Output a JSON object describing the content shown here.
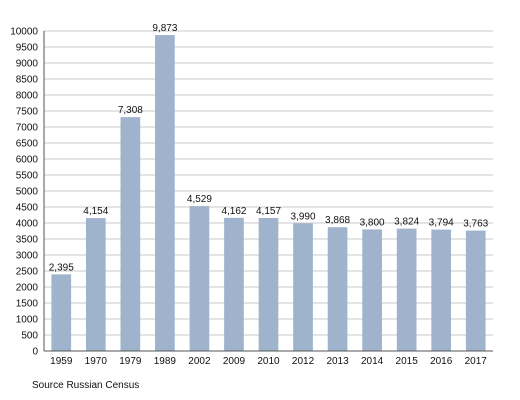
{
  "chart_data": {
    "type": "bar",
    "categories": [
      "1959",
      "1970",
      "1979",
      "1989",
      "2002",
      "2009",
      "2010",
      "2012",
      "2013",
      "2014",
      "2015",
      "2016",
      "2017"
    ],
    "values": [
      2395,
      4154,
      7308,
      9873,
      4529,
      4162,
      4157,
      3990,
      3868,
      3800,
      3824,
      3794,
      3763
    ],
    "value_labels": [
      "2,395",
      "4,154",
      "7,308",
      "9,873",
      "4,529",
      "4,162",
      "4,157",
      "3,990",
      "3,868",
      "3,800",
      "3,824",
      "3,794",
      "3,763"
    ],
    "ylim": [
      0,
      10000
    ],
    "y_ticks": [
      0,
      500,
      1000,
      1500,
      2000,
      2500,
      3000,
      3500,
      4000,
      4500,
      5000,
      5500,
      6000,
      6500,
      7000,
      7500,
      8000,
      8500,
      9000,
      9500,
      10000
    ],
    "grid": true,
    "legend": "none",
    "bar_color": "#9fb4cc",
    "grid_color": "#c8c8c8"
  },
  "source_note": "Source Russian Census"
}
